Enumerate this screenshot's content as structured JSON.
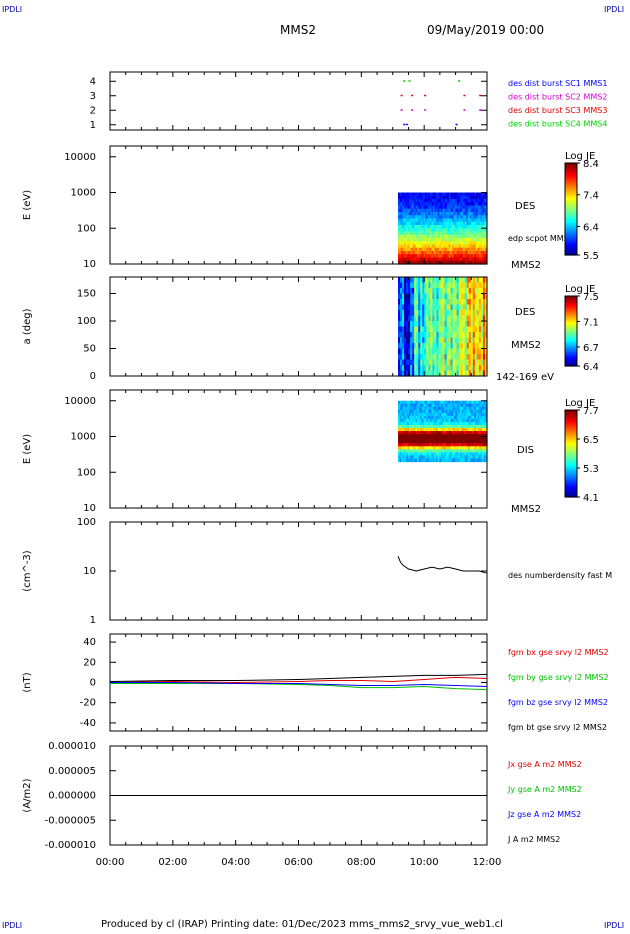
{
  "corners": {
    "tl": "IPDLI",
    "tr": "IPDLI",
    "bl": "IPDLI",
    "br": "IPDLI"
  },
  "header": {
    "spacecraft": "MMS2",
    "datetime": "09/May/2019 00:00"
  },
  "footer": {
    "text": "Produced by cl (IRAP)   Printing date: 01/Dec/2023   mms_mms2_srvy_vue_web1.cl"
  },
  "colors": {
    "mms1": "#0000ff",
    "mms2": "#d000d0",
    "mms3": "#e00000",
    "mms4": "#00d000",
    "bx": "#e00000",
    "by": "#00c000",
    "bz": "#0000ff",
    "bt": "#000000"
  },
  "chart_data": [
    {
      "type": "scatter",
      "id": "availability",
      "yticks": [
        "1",
        "2",
        "3",
        "4"
      ],
      "legend": [
        {
          "name": "des dist burst SC1 MMS1",
          "color": "#0000ff"
        },
        {
          "name": "des dist burst SC2 MMS2",
          "color": "#d000d0"
        },
        {
          "name": "des dist burst SC3 MMS3",
          "color": "#e00000"
        },
        {
          "name": "des dist burst SC4 MMS4",
          "color": "#00d000"
        }
      ],
      "series": [
        {
          "name": "des dist burst SC1 MMS1",
          "y": 1,
          "x": [
            "09:20",
            "09:25",
            "11:00"
          ]
        },
        {
          "name": "des dist burst SC2 MMS2",
          "y": 2,
          "x": [
            "09:15",
            "09:35",
            "10:00",
            "11:15",
            "11:45"
          ]
        },
        {
          "name": "des dist burst SC3 MMS3",
          "y": 3,
          "x": [
            "09:15",
            "09:35",
            "10:00",
            "11:15",
            "11:45"
          ]
        },
        {
          "name": "des dist burst SC4 MMS4",
          "y": 4,
          "x": [
            "09:20",
            "09:30",
            "11:05"
          ]
        }
      ]
    },
    {
      "type": "heatmap",
      "id": "des-energy",
      "ylabel": "E (eV)",
      "yscale": "log",
      "ylim": [
        10,
        20000
      ],
      "yticks": [
        "10",
        "100",
        "1000",
        "10000"
      ],
      "data_x": [
        "09:10",
        "12:00"
      ],
      "data_ylim": [
        10,
        1000
      ],
      "side_labels": [
        "DES",
        "edp scpot MMS2",
        "MMS2"
      ],
      "colorbar": {
        "title": "Log JE",
        "ticks": [
          "8.4",
          "7.4",
          "6.4",
          "5.5"
        ],
        "min": 5.5,
        "max": 8.4
      }
    },
    {
      "type": "heatmap",
      "id": "des-pitch",
      "ylabel": "a (deg)",
      "ylim": [
        0,
        180
      ],
      "yticks": [
        "0",
        "50",
        "100",
        "150"
      ],
      "data_x": [
        "09:10",
        "12:00"
      ],
      "side_labels": [
        "DES",
        "MMS2",
        "142-169 eV"
      ],
      "colorbar": {
        "title": "Log JE",
        "ticks": [
          "7.5",
          "7.1",
          "6.7",
          "6.4"
        ],
        "min": 6.4,
        "max": 7.5
      }
    },
    {
      "type": "heatmap",
      "id": "dis-energy",
      "ylabel": "E (eV)",
      "yscale": "log",
      "ylim": [
        10,
        20000
      ],
      "yticks": [
        "10",
        "100",
        "1000",
        "10000"
      ],
      "data_x": [
        "09:10",
        "12:00"
      ],
      "data_ylim": [
        200,
        10000
      ],
      "side_labels": [
        "DIS",
        "MMS2"
      ],
      "colorbar": {
        "title": "Log JE",
        "ticks": [
          "7.7",
          "6.5",
          "5.3",
          "4.1"
        ],
        "min": 4.1,
        "max": 7.7
      }
    },
    {
      "type": "line",
      "id": "density",
      "ylabel": "(cm^-3)",
      "yscale": "log",
      "ylim": [
        1,
        100
      ],
      "yticks": [
        "1",
        "10",
        "100"
      ],
      "series": [
        {
          "name": "des numberdensity fast M",
          "color": "#000000",
          "x": [
            "09:10",
            "09:15",
            "09:20",
            "09:30",
            "09:45",
            "10:00",
            "10:15",
            "10:30",
            "10:45",
            "11:00",
            "11:15",
            "11:30",
            "11:45",
            "12:00"
          ],
          "y": [
            20,
            15,
            13,
            11,
            10,
            11,
            12,
            11,
            12,
            11,
            10,
            10,
            10,
            9
          ]
        }
      ]
    },
    {
      "type": "line",
      "id": "fgm",
      "ylabel": "(nT)",
      "ylim": [
        -48,
        48
      ],
      "yticks": [
        "-40",
        "-20",
        "0",
        "20",
        "40"
      ],
      "series": [
        {
          "name": "fgm bx gse srvy l2 MMS2",
          "color": "#e00000",
          "x": [
            "00:00",
            "02:00",
            "04:00",
            "06:00",
            "07:00",
            "08:00",
            "09:00",
            "10:00",
            "11:00",
            "12:00"
          ],
          "y": [
            0,
            1,
            0,
            1,
            2,
            2,
            1,
            3,
            5,
            4
          ]
        },
        {
          "name": "fgm by gse srvy l2 MMS2",
          "color": "#00c000",
          "x": [
            "00:00",
            "02:00",
            "04:00",
            "06:00",
            "07:00",
            "08:00",
            "09:00",
            "10:00",
            "11:00",
            "12:00"
          ],
          "y": [
            -1,
            -1,
            -1,
            -2,
            -3,
            -5,
            -5,
            -4,
            -6,
            -7
          ]
        },
        {
          "name": "fgm bz gse srvy l2 MMS2",
          "color": "#0000ff",
          "x": [
            "00:00",
            "02:00",
            "04:00",
            "06:00",
            "07:00",
            "08:00",
            "09:00",
            "10:00",
            "11:00",
            "12:00"
          ],
          "y": [
            0,
            0,
            -1,
            -1,
            -2,
            -3,
            -3,
            -2,
            -3,
            -4
          ]
        },
        {
          "name": "fgm bt gse srvy l2 MMS2",
          "color": "#000000",
          "x": [
            "00:00",
            "02:00",
            "04:00",
            "06:00",
            "07:00",
            "08:00",
            "09:00",
            "10:00",
            "11:00",
            "12:00"
          ],
          "y": [
            1,
            2,
            2,
            3,
            4,
            5,
            6,
            7,
            7,
            8
          ]
        }
      ]
    },
    {
      "type": "line",
      "id": "current",
      "ylabel": "(A/m2)",
      "ylim": [
        -1e-05,
        1e-05
      ],
      "yticks": [
        "-0.000010",
        "-0.000005",
        "0.000000",
        "0.000005",
        "0.000010"
      ],
      "xticks": [
        "00:00",
        "02:00",
        "04:00",
        "06:00",
        "08:00",
        "10:00",
        "12:00"
      ],
      "series": [
        {
          "name": "Jx gse A m2 MMS2",
          "color": "#e00000",
          "x": [
            "00:00",
            "12:00"
          ],
          "y": [
            0,
            0
          ]
        },
        {
          "name": "Jy gse A m2 MMS2",
          "color": "#00c000",
          "x": [
            "00:00",
            "12:00"
          ],
          "y": [
            0,
            0
          ]
        },
        {
          "name": "Jz gse A m2 MMS2",
          "color": "#0000ff",
          "x": [
            "00:00",
            "12:00"
          ],
          "y": [
            0,
            0
          ]
        },
        {
          "name": "J A m2 MMS2",
          "color": "#000000",
          "x": [
            "00:00",
            "12:00"
          ],
          "y": [
            0,
            0
          ]
        }
      ]
    }
  ]
}
